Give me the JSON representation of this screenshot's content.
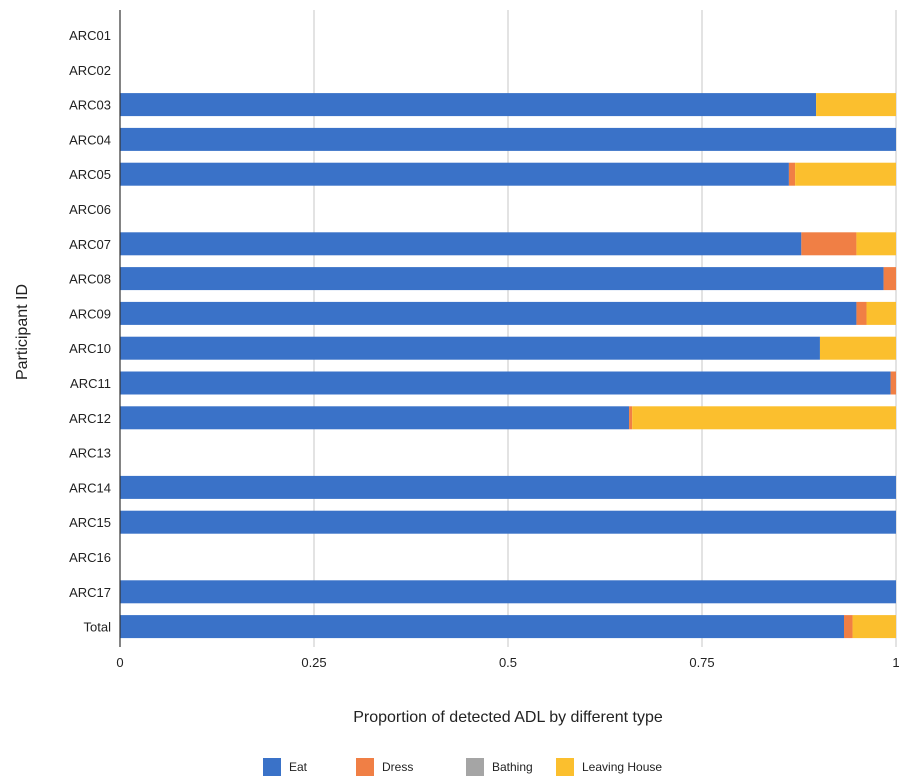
{
  "chart_data": {
    "type": "bar",
    "orientation": "horizontal",
    "stacked": true,
    "xlabel": "Proportion of detected ADL by different type",
    "ylabel": "Participant ID",
    "xlim": [
      0,
      1
    ],
    "xticks": [
      "0",
      "0.25",
      "0.5",
      "0.75",
      "1"
    ],
    "grid": true,
    "legend_position": "bottom",
    "categories": [
      "ARC01",
      "ARC02",
      "ARC03",
      "ARC04",
      "ARC05",
      "ARC06",
      "ARC07",
      "ARC08",
      "ARC09",
      "ARC10",
      "ARC11",
      "ARC12",
      "ARC13",
      "ARC14",
      "ARC15",
      "ARC16",
      "ARC17",
      "Total"
    ],
    "series": [
      {
        "name": "Eat",
        "color": "#3a72c8",
        "values": [
          0,
          0,
          0.897,
          1,
          0.862,
          0,
          0.878,
          0.984,
          0.949,
          0.902,
          0.993,
          0.656,
          0,
          1,
          1,
          0,
          1,
          0.933
        ]
      },
      {
        "name": "Dress",
        "color": "#f07f45",
        "values": [
          0,
          0,
          0,
          0,
          0.008,
          0,
          0.071,
          0.016,
          0.013,
          0,
          0.007,
          0.004,
          0,
          0,
          0,
          0,
          0,
          0.011
        ]
      },
      {
        "name": "Bathing",
        "color": "#a5a5a5",
        "values": [
          0,
          0,
          0,
          0,
          0,
          0,
          0,
          0,
          0,
          0,
          0,
          0,
          0,
          0,
          0,
          0,
          0,
          0
        ]
      },
      {
        "name": "Leaving House",
        "color": "#fbbf2e",
        "values": [
          0,
          0,
          0.103,
          0,
          0.13,
          0,
          0.051,
          0,
          0.038,
          0.098,
          0,
          0.34,
          0,
          0,
          0,
          0,
          0,
          0.056
        ]
      }
    ]
  }
}
